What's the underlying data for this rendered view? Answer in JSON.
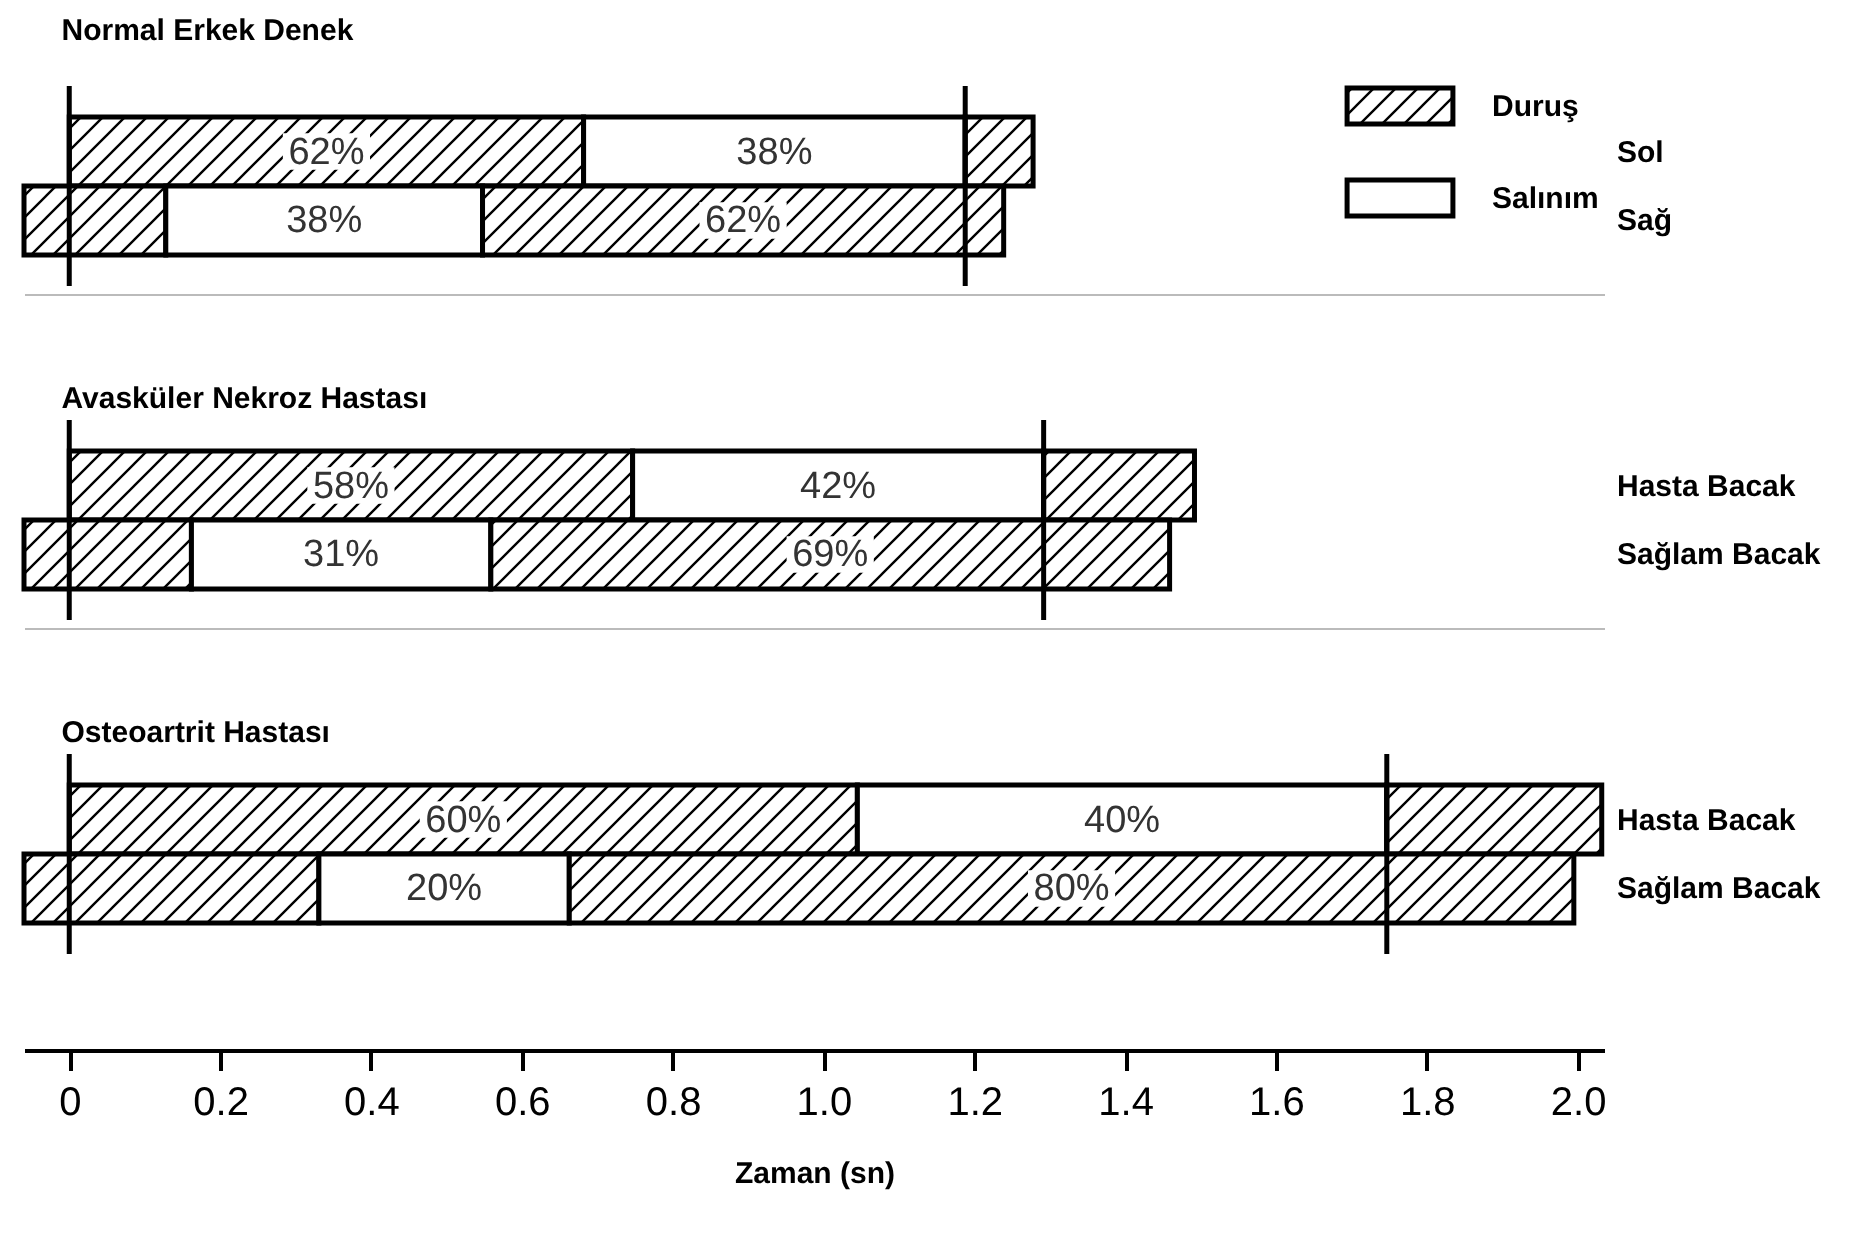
{
  "chart_data": [
    {
      "type": "bar",
      "orientation": "horizontal",
      "title": "Normal Erkek Denek",
      "categories": [
        "Sol",
        "Sağ"
      ],
      "series": [
        {
          "name": "Duruş",
          "color": "#000000",
          "base": [
            0,
            -0.06
          ],
          "values": [
            0.682,
            0.188
          ]
        },
        {
          "name": "Salınım",
          "color": "#ffffff",
          "base": [
            0.682,
            0.128
          ],
          "values": [
            0.506,
            0.42
          ]
        },
        {
          "color": "#000000",
          "base": [
            1.188,
            0.548
          ],
          "values": [
            0.09,
            0.691
          ]
        }
      ],
      "annotations": [
        "62%",
        "38%",
        "38%",
        "62%"
      ],
      "xlim": [
        -0.06,
        2.035
      ],
      "ref_lines": [
        {
          "axis": "x",
          "value": 0
        },
        {
          "axis": "x",
          "value": 1.188
        }
      ],
      "legend": "top right",
      "grid": false,
      "tick_labels": "y"
    },
    {
      "type": "bar",
      "orientation": "horizontal",
      "title": "Avasküler Nekroz Hastası",
      "categories": [
        "Hasta Bacak",
        "Sağlam Bacak"
      ],
      "series": [
        {
          "color": "#000000",
          "base": [
            0,
            -0.06
          ],
          "values": [
            0.747,
            0.222
          ]
        },
        {
          "color": "#ffffff",
          "base": [
            0.747,
            0.162
          ],
          "values": [
            0.545,
            0.397
          ]
        },
        {
          "color": "#000000",
          "base": [
            1.292,
            0.559
          ],
          "values": [
            0.2,
            0.9
          ]
        }
      ],
      "annotations": [
        "58%",
        "42%",
        "31%",
        "69%"
      ],
      "xlim": [
        -0.06,
        2.035
      ],
      "ref_lines": [
        {
          "axis": "x",
          "value": 0
        },
        {
          "axis": "x",
          "value": 1.292
        }
      ],
      "grid": false,
      "tick_labels": "y"
    },
    {
      "type": "bar",
      "orientation": "horizontal",
      "title": "Osteoartrit Hastası",
      "categories": [
        "Hasta Bacak",
        "Sağlam Bacak"
      ],
      "xlabel": "Zaman (sn)",
      "series": [
        {
          "color": "#000000",
          "base": [
            0,
            -0.06
          ],
          "values": [
            1.045,
            0.391
          ]
        },
        {
          "color": "#ffffff",
          "base": [
            1.045,
            0.331
          ],
          "values": [
            0.702,
            0.332
          ]
        },
        {
          "color": "#000000",
          "base": [
            1.747,
            0.663
          ],
          "values": [
            0.285,
            1.332
          ]
        }
      ],
      "annotations": [
        "60%",
        "40%",
        "20%",
        "80%"
      ],
      "xlim": [
        -0.06,
        2.035
      ],
      "xticks": [
        0,
        0.2,
        0.4,
        0.6,
        0.8,
        {
          "value": 1,
          "label": "1.0"
        },
        1.2,
        1.4,
        1.6,
        1.8,
        {
          "value": 2,
          "label": "2.0"
        }
      ],
      "ref_lines": [
        {
          "axis": "x",
          "value": 0
        },
        {
          "axis": "x",
          "value": 1.747
        }
      ],
      "grid": false
    }
  ]
}
